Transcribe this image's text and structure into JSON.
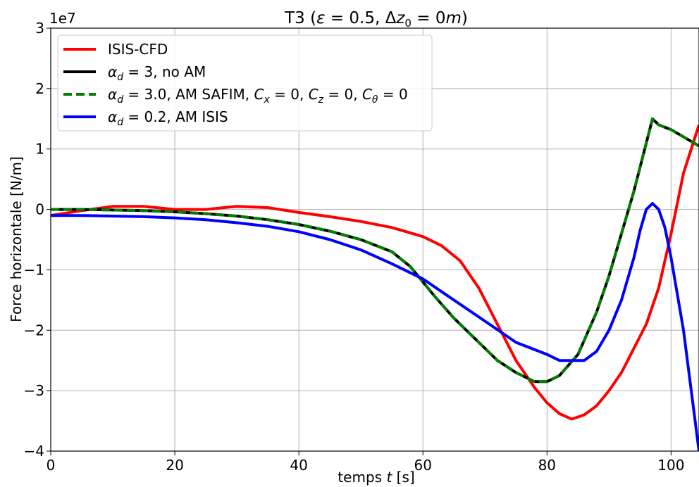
{
  "chart_data": {
    "type": "line",
    "title": "T3 (ε = 0.5, Δz₀ = 0m)",
    "title_parts": {
      "base": "T3 (",
      "eps": "ε",
      "eps_val": " = 0.5, Δ",
      "z": "z",
      "sub0": "0",
      "z_val": " = 0",
      "m": "m",
      "close": ")"
    },
    "xlabel_parts": {
      "pre": "temps ",
      "t": "t",
      "post": " [s]"
    },
    "ylabel": "Force horizontale [N/m]",
    "y_offset_text": "1e7",
    "xlim": [
      0,
      104.5
    ],
    "ylim": [
      -4,
      3
    ],
    "x_ticks": [
      0,
      20,
      40,
      60,
      80,
      100
    ],
    "x_tick_labels": [
      "0",
      "20",
      "40",
      "60",
      "80",
      "100"
    ],
    "y_ticks": [
      -4,
      -3,
      -2,
      -1,
      0,
      1,
      2,
      3
    ],
    "y_tick_labels": [
      "−4",
      "−3",
      "−2",
      "−1",
      "0",
      "1",
      "2",
      "3"
    ],
    "grid": true,
    "legend_position": "top-left",
    "series": [
      {
        "name": "ISIS-CFD",
        "legend": {
          "plain": "ISIS-CFD"
        },
        "color": "#ff0000",
        "dash": "solid",
        "x": [
          0,
          5,
          10,
          15,
          20,
          25,
          30,
          35,
          40,
          45,
          50,
          55,
          60,
          63,
          66,
          69,
          72,
          75,
          78,
          80,
          82,
          84,
          86,
          88,
          90,
          92,
          94,
          96,
          98,
          100,
          102,
          104.5
        ],
        "y": [
          -0.1,
          -0.02,
          0.05,
          0.05,
          0.0,
          0.0,
          0.05,
          0.03,
          -0.05,
          -0.12,
          -0.2,
          -0.3,
          -0.45,
          -0.6,
          -0.85,
          -1.3,
          -1.9,
          -2.5,
          -2.95,
          -3.2,
          -3.38,
          -3.47,
          -3.4,
          -3.25,
          -3.0,
          -2.7,
          -2.3,
          -1.9,
          -1.3,
          -0.4,
          0.6,
          1.4
        ]
      },
      {
        "name": "αd = 3, no AM",
        "legend": {
          "alpha": "α",
          "sub": "d",
          "rest": " = 3, no AM"
        },
        "color": "#000000",
        "dash": "solid",
        "x": [
          0,
          5,
          10,
          15,
          20,
          25,
          30,
          35,
          40,
          45,
          50,
          55,
          58,
          60,
          62,
          65,
          68,
          70,
          72,
          75,
          78,
          80,
          82,
          85,
          88,
          90,
          92,
          94,
          96,
          97,
          98,
          100,
          102,
          104.5
        ],
        "y": [
          0,
          0,
          -0.01,
          -0.02,
          -0.04,
          -0.07,
          -0.11,
          -0.17,
          -0.25,
          -0.36,
          -0.5,
          -0.7,
          -0.95,
          -1.2,
          -1.45,
          -1.8,
          -2.1,
          -2.3,
          -2.5,
          -2.7,
          -2.85,
          -2.85,
          -2.75,
          -2.4,
          -1.7,
          -1.1,
          -0.4,
          0.3,
          1.1,
          1.5,
          1.4,
          1.32,
          1.2,
          1.05
        ]
      },
      {
        "name": "αd = 3.0, AM SAFIM, Cx = 0, Cz = 0, Cθ = 0",
        "legend": {
          "alpha": "α",
          "sub": "d",
          "rest": " = 3.0, AM SAFIM, ",
          "c1": "C",
          "c1sub": "x",
          "r1": " = 0, ",
          "c2": "C",
          "c2sub": "z",
          "r2": " = 0, ",
          "c3": "C",
          "c3sub": "θ",
          "r3": " = 0"
        },
        "color": "#008000",
        "dash": "dashed",
        "x": [
          0,
          5,
          10,
          15,
          20,
          25,
          30,
          35,
          40,
          45,
          50,
          55,
          58,
          60,
          62,
          65,
          68,
          70,
          72,
          75,
          78,
          80,
          82,
          85,
          88,
          90,
          92,
          94,
          96,
          97,
          98,
          100,
          102,
          104.5
        ],
        "y": [
          0,
          0,
          -0.01,
          -0.02,
          -0.04,
          -0.07,
          -0.11,
          -0.17,
          -0.25,
          -0.36,
          -0.5,
          -0.7,
          -0.95,
          -1.2,
          -1.45,
          -1.8,
          -2.1,
          -2.3,
          -2.5,
          -2.7,
          -2.85,
          -2.85,
          -2.75,
          -2.4,
          -1.7,
          -1.1,
          -0.4,
          0.3,
          1.1,
          1.5,
          1.4,
          1.32,
          1.2,
          1.05
        ]
      },
      {
        "name": "αd = 0.2, AM ISIS",
        "legend": {
          "alpha": "α",
          "sub": "d",
          "rest": " = 0.2, AM ISIS"
        },
        "color": "#0000ff",
        "dash": "solid",
        "x": [
          0,
          5,
          10,
          15,
          20,
          25,
          30,
          35,
          40,
          45,
          50,
          55,
          60,
          65,
          70,
          75,
          80,
          82,
          86,
          88,
          90,
          92,
          94,
          95,
          96,
          97,
          98,
          99,
          100,
          102,
          104.5
        ],
        "y": [
          -0.1,
          -0.1,
          -0.11,
          -0.12,
          -0.14,
          -0.17,
          -0.22,
          -0.28,
          -0.37,
          -0.5,
          -0.67,
          -0.9,
          -1.15,
          -1.5,
          -1.85,
          -2.2,
          -2.4,
          -2.5,
          -2.5,
          -2.35,
          -2.0,
          -1.5,
          -0.8,
          -0.35,
          0.0,
          0.1,
          0.0,
          -0.3,
          -0.8,
          -2.0,
          -4.0
        ]
      }
    ]
  }
}
